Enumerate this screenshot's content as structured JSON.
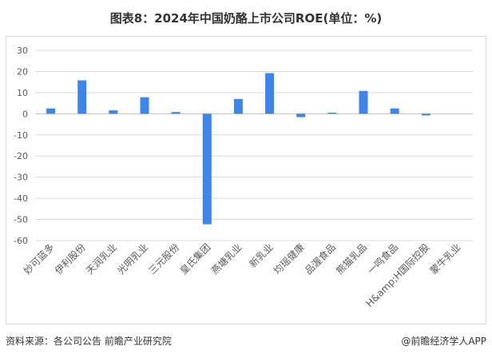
{
  "title": "图表8：2024年中国奶酪上市公司ROE(单位：%)",
  "footer": {
    "source": "资料来源：各公司公告 前瞻产业研究院",
    "brand": "@前瞻经济学人APP"
  },
  "colors": {
    "bar": "#3d85e6",
    "grid": "#d9d9d9",
    "axis": "#bfbfbf"
  },
  "chart_data": {
    "type": "bar",
    "categories": [
      "妙可蓝多",
      "伊利股份",
      "天润乳业",
      "光明乳业",
      "三元股份",
      "皇氏集团",
      "燕塘乳业",
      "新乳业",
      "均瑶健康",
      "品渥食品",
      "熊猫乳品",
      "一鸣食品",
      "H&amp;H国际控股",
      "蒙牛乳业"
    ],
    "values": [
      2.5,
      15.8,
      1.6,
      7.8,
      0.8,
      -52.3,
      7.0,
      19.2,
      -1.6,
      0.5,
      10.8,
      2.5,
      -0.8,
      null
    ],
    "ylim": [
      -60,
      30
    ],
    "yticks": [
      30,
      20,
      10,
      0,
      -10,
      -20,
      -30,
      -40,
      -50,
      -60
    ],
    "grid": true
  }
}
